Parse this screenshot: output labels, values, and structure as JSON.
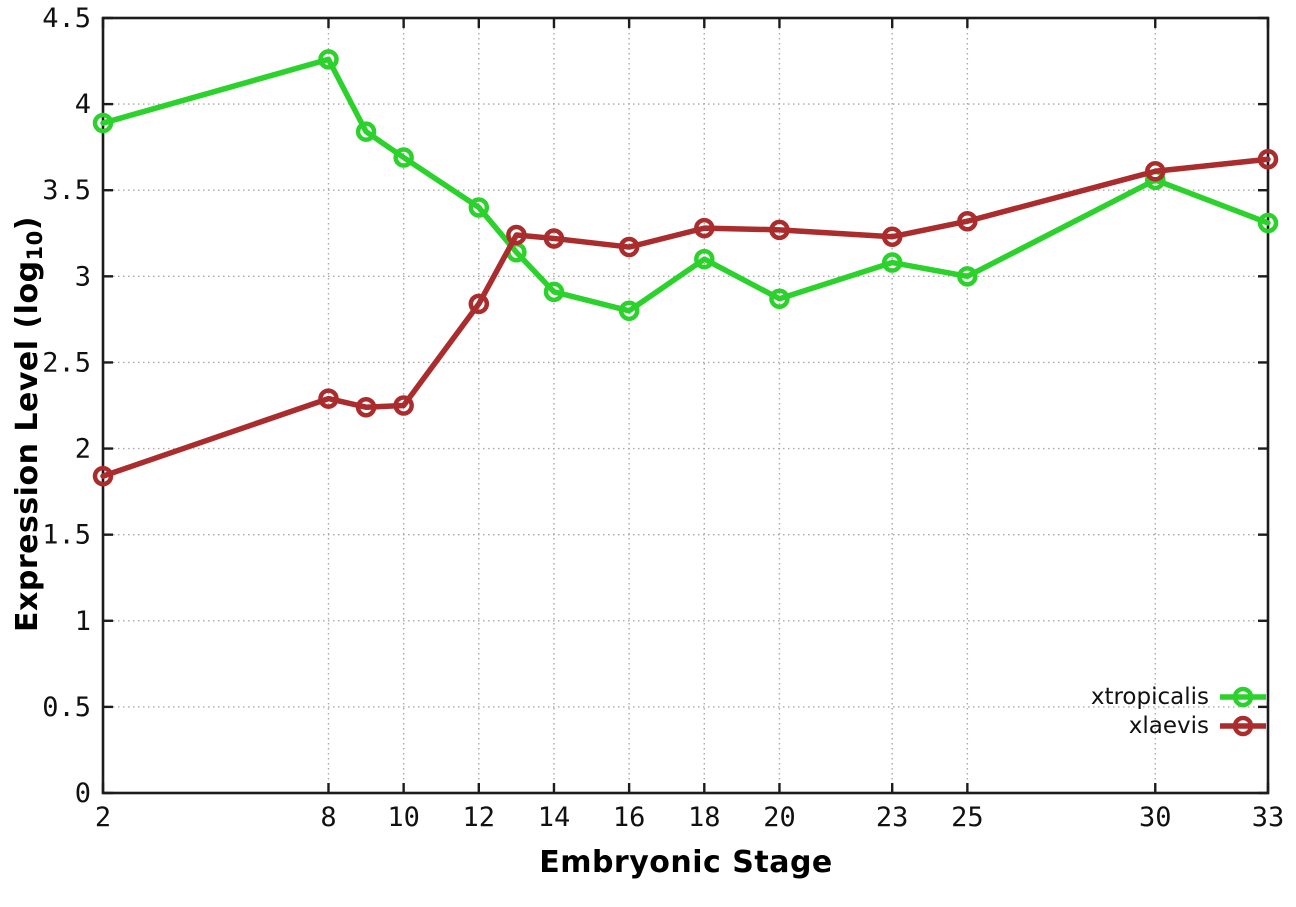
{
  "chart_data": {
    "type": "line",
    "title": "",
    "xlabel": "Embryonic Stage",
    "ylabel": "Expression Level (log10)",
    "ylabel_parts": {
      "pre": "Expression Level (log",
      "sub": "10",
      "post": ")"
    },
    "xlim": [
      2,
      33
    ],
    "ylim": [
      0,
      4.5
    ],
    "x_ticks": [
      2,
      8,
      10,
      12,
      14,
      16,
      18,
      20,
      23,
      25,
      30,
      33
    ],
    "y_ticks": [
      0,
      0.5,
      1,
      1.5,
      2,
      2.5,
      3,
      3.5,
      4,
      4.5
    ],
    "grid": true,
    "legend_position": "bottom-right-inside",
    "background_color": "#ffffff",
    "x": [
      2,
      8,
      9,
      10,
      12,
      13,
      14,
      16,
      18,
      20,
      23,
      25,
      30,
      33
    ],
    "series": [
      {
        "name": "xtropicalis",
        "color": "#2bd22b",
        "marker": "open-circle",
        "values": [
          3.89,
          4.26,
          3.84,
          3.69,
          3.4,
          3.14,
          2.91,
          2.8,
          3.1,
          2.87,
          3.08,
          3.0,
          3.56,
          3.31
        ]
      },
      {
        "name": "xlaevis",
        "color": "#aa2c2c",
        "marker": "open-circle",
        "values": [
          1.84,
          2.29,
          2.24,
          2.25,
          2.84,
          3.24,
          3.22,
          3.17,
          3.28,
          3.27,
          3.23,
          3.32,
          3.61,
          3.68
        ]
      }
    ]
  }
}
